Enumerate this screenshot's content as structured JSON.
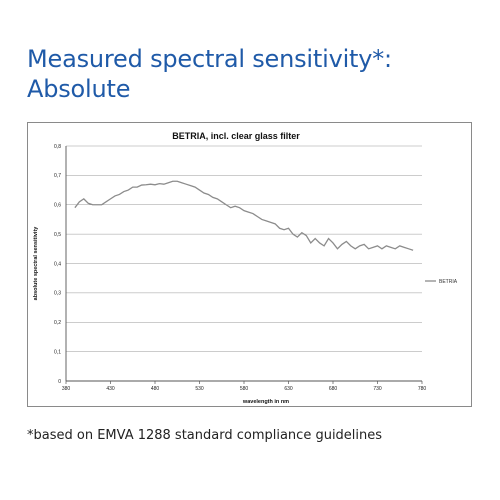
{
  "heading": {
    "line1": "Measured spectral sensitivity*:",
    "line2": "Absolute"
  },
  "footnote": "*based on EMVA 1288 standard compliance guidelines",
  "colors": {
    "heading": "#1f5aa8",
    "series": "#8c8c8c",
    "grid": "#9a9a9a"
  },
  "chart_data": {
    "type": "line",
    "title": "BETRIA, incl. clear glass filter",
    "xlabel": "wavelength in nm",
    "ylabel": "absolute spectral sensitivity",
    "xlim": [
      380,
      780
    ],
    "ylim": [
      0,
      0.8
    ],
    "xticks": [
      380,
      430,
      480,
      530,
      580,
      630,
      680,
      730,
      780
    ],
    "xtick_labels": [
      "380",
      "430",
      "480",
      "530",
      "580",
      "630",
      "680",
      "730",
      "780"
    ],
    "yticks": [
      0,
      0.1,
      0.2,
      0.3,
      0.4,
      0.5,
      0.6,
      0.7,
      0.8
    ],
    "ytick_labels": [
      "0",
      "0,1",
      "0,2",
      "0,3",
      "0,4",
      "0,5",
      "0,6",
      "0,7",
      "0,8"
    ],
    "grid": "horizontal",
    "legend": "right",
    "series": [
      {
        "name": "BETRIA",
        "x": [
          390,
          395,
          400,
          405,
          410,
          415,
          420,
          425,
          430,
          435,
          440,
          445,
          450,
          455,
          460,
          465,
          470,
          475,
          480,
          485,
          490,
          495,
          500,
          505,
          510,
          515,
          520,
          525,
          530,
          535,
          540,
          545,
          550,
          555,
          560,
          565,
          570,
          575,
          580,
          585,
          590,
          595,
          600,
          605,
          610,
          615,
          620,
          625,
          630,
          635,
          640,
          645,
          650,
          655,
          660,
          665,
          670,
          675,
          680,
          685,
          690,
          695,
          700,
          705,
          710,
          715,
          720,
          725,
          730,
          735,
          740,
          745,
          750,
          755,
          760,
          765,
          770
        ],
        "y": [
          0.59,
          0.61,
          0.62,
          0.605,
          0.6,
          0.6,
          0.6,
          0.61,
          0.62,
          0.63,
          0.635,
          0.645,
          0.65,
          0.66,
          0.66,
          0.667,
          0.668,
          0.67,
          0.668,
          0.672,
          0.67,
          0.675,
          0.68,
          0.68,
          0.675,
          0.67,
          0.665,
          0.66,
          0.65,
          0.64,
          0.635,
          0.625,
          0.62,
          0.61,
          0.6,
          0.59,
          0.595,
          0.59,
          0.58,
          0.575,
          0.57,
          0.56,
          0.55,
          0.545,
          0.54,
          0.535,
          0.52,
          0.515,
          0.52,
          0.5,
          0.49,
          0.505,
          0.495,
          0.47,
          0.485,
          0.47,
          0.46,
          0.485,
          0.47,
          0.45,
          0.465,
          0.475,
          0.46,
          0.45,
          0.46,
          0.465,
          0.45,
          0.455,
          0.46,
          0.45,
          0.46,
          0.455,
          0.45,
          0.46,
          0.455,
          0.45,
          0.445
        ]
      }
    ]
  }
}
